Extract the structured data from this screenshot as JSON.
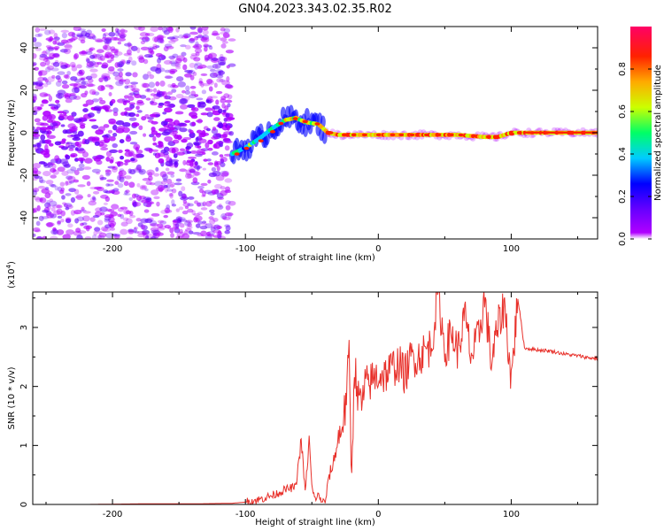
{
  "figure_title": "GN04.2023.343.02.35.R02",
  "colors": {
    "snr_line": "#e8302a",
    "spectrogram_noise": "#8a2be2",
    "colormap": [
      "#b000ff",
      "#6600ff",
      "#0000ff",
      "#00ccff",
      "#00ff66",
      "#ccff00",
      "#ffaa00",
      "#ff2200",
      "#ff0066"
    ]
  },
  "chart_data": [
    {
      "type": "heatmap",
      "title": "",
      "xlabel": "Height of straight line (km)",
      "ylabel": "Frequency (Hz)",
      "xlim": [
        -260,
        165
      ],
      "ylim": [
        -50,
        50
      ],
      "xticks": [
        -200,
        -100,
        0,
        100
      ],
      "yticks": [
        -40,
        -20,
        0,
        20,
        40
      ],
      "colorbar": {
        "label": "Normalized spectral amplitude",
        "range": [
          0,
          1
        ],
        "ticks": [
          "0.0",
          "0.2",
          "0.4",
          "0.6",
          "0.8"
        ]
      },
      "grid": false,
      "ridge": {
        "x": [
          -110,
          -100,
          -90,
          -80,
          -70,
          -62,
          -55,
          -45,
          -38,
          -30,
          -20,
          -10,
          0,
          20,
          40,
          60,
          80,
          90,
          100,
          120,
          140,
          165
        ],
        "frequency_hz": [
          -10,
          -7,
          -3,
          2,
          6,
          7,
          5,
          4,
          0,
          -1,
          -1,
          -1,
          -1,
          -1,
          -1,
          -1,
          -2,
          -2,
          0,
          0,
          0,
          0
        ]
      },
      "noise_region": {
        "x_range": [
          -260,
          -110
        ],
        "frequency_range": [
          -50,
          50
        ]
      }
    },
    {
      "type": "line",
      "title": "",
      "xlabel": "Height of straight line (km)",
      "ylabel": "SNR (10 * v/v)",
      "y_multiplier": "(x10",
      "y_multiplier_exp": "4",
      "y_multiplier_close": ")",
      "xlim": [
        -260,
        165
      ],
      "ylim": [
        0,
        3.6
      ],
      "xticks": [
        -200,
        -100,
        0,
        100
      ],
      "yticks": [
        0,
        1,
        2,
        3
      ],
      "grid": false,
      "series": [
        {
          "x": [
            -260,
            -220,
            -180,
            -140,
            -110,
            -100,
            -90,
            -80,
            -70,
            -62,
            -58,
            -55,
            -52,
            -50,
            -48,
            -45,
            -42,
            -40,
            -37,
            -35,
            -30,
            -25,
            -22,
            -20,
            -18,
            -15,
            -12,
            -10,
            -5,
            0,
            5,
            10,
            15,
            20,
            25,
            30,
            35,
            40,
            45,
            50,
            55,
            60,
            65,
            70,
            75,
            80,
            85,
            90,
            95,
            100,
            105,
            110,
            120,
            130,
            140,
            150,
            160,
            165
          ],
          "y": [
            0.0,
            0.0,
            0.01,
            0.01,
            0.02,
            0.04,
            0.08,
            0.15,
            0.25,
            0.3,
            1.1,
            0.2,
            1.1,
            0.3,
            0.1,
            0.15,
            0.05,
            0.03,
            0.5,
            0.6,
            1.1,
            1.6,
            2.5,
            0.4,
            2.4,
            1.8,
            1.7,
            2.0,
            2.1,
            2.2,
            2.2,
            2.3,
            2.4,
            2.2,
            2.5,
            2.5,
            2.6,
            2.7,
            3.6,
            2.6,
            2.9,
            2.6,
            3.2,
            2.5,
            2.8,
            3.5,
            2.4,
            3.0,
            3.4,
            2.1,
            3.5,
            2.65,
            2.62,
            2.6,
            2.55,
            2.52,
            2.48,
            2.48
          ]
        }
      ]
    }
  ]
}
